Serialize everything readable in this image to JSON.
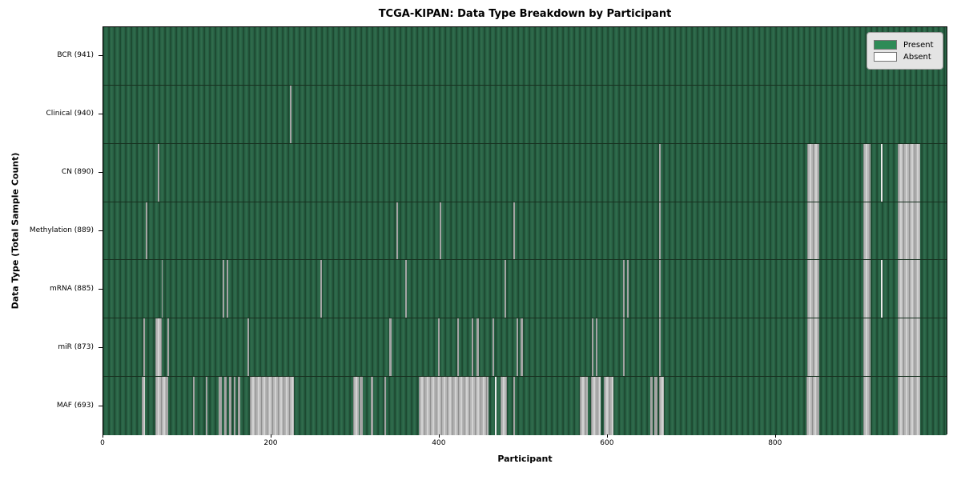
{
  "chart_data": {
    "type": "heatmap",
    "title": "TCGA-KIPAN: Data Type Breakdown by Participant",
    "xlabel": "Participant",
    "ylabel": "Data Type (Total Sample Count)",
    "legend": [
      {
        "label": "Present",
        "color": "#2e8b57"
      },
      {
        "label": "Absent",
        "color": "#ffffff"
      }
    ],
    "legend_position": "upper right",
    "grid": "row-separators",
    "x_ticks": [
      0,
      200,
      400,
      600,
      800
    ],
    "x_max": 1005,
    "colors": {
      "present_fill": "#2a6647",
      "present_cell_edge": "#1c4a31",
      "absent_fill": "#b5b5b5",
      "row_separator": "#17301f",
      "axis": "#000000"
    },
    "rows": [
      {
        "label": "BCR (941)",
        "data_type": "BCR",
        "total_sample_count": 941,
        "absent_stripes_pct": []
      },
      {
        "label": "Clinical (940)",
        "data_type": "Clinical",
        "total_sample_count": 940,
        "absent_stripes_pct": [
          [
            22.09,
            0.19,
            0
          ]
        ]
      },
      {
        "label": "CN (890)",
        "data_type": "CN",
        "total_sample_count": 890,
        "absent_stripes_pct": [
          [
            6.45,
            0.21,
            0
          ],
          [
            65.88,
            0.19,
            0
          ],
          [
            83.51,
            1.4,
            1
          ],
          [
            90.14,
            0.85,
            1
          ],
          [
            92.23,
            0.14,
            2
          ],
          [
            94.22,
            2.65,
            1
          ]
        ]
      },
      {
        "label": "Methylation (889)",
        "data_type": "Methylation",
        "total_sample_count": 889,
        "absent_stripes_pct": [
          [
            5.02,
            0.16,
            0
          ],
          [
            34.79,
            0.19,
            0
          ],
          [
            39.91,
            0.19,
            0
          ],
          [
            48.63,
            0.19,
            0
          ],
          [
            65.88,
            0.19,
            0
          ],
          [
            83.51,
            1.4,
            1
          ],
          [
            90.14,
            0.85,
            1
          ],
          [
            94.22,
            2.65,
            1
          ]
        ]
      },
      {
        "label": "mRNA (885)",
        "data_type": "mRNA",
        "total_sample_count": 885,
        "absent_stripes_pct": [
          [
            6.92,
            0.15,
            0
          ],
          [
            14.12,
            0.24,
            0
          ],
          [
            14.6,
            0.21,
            0
          ],
          [
            25.78,
            0.17,
            0
          ],
          [
            35.83,
            0.15,
            0
          ],
          [
            47.58,
            0.15,
            0
          ],
          [
            61.61,
            0.24,
            0
          ],
          [
            62.09,
            0.21,
            0
          ],
          [
            65.88,
            0.19,
            0
          ],
          [
            83.51,
            1.4,
            1
          ],
          [
            90.14,
            0.85,
            1
          ],
          [
            92.23,
            0.14,
            2
          ],
          [
            94.22,
            2.65,
            1
          ]
        ]
      },
      {
        "label": "miR (873)",
        "data_type": "miR",
        "total_sample_count": 873,
        "absent_stripes_pct": [
          [
            4.74,
            0.19,
            0
          ],
          [
            6.16,
            0.76,
            1
          ],
          [
            7.58,
            0.19,
            0
          ],
          [
            17.06,
            0.19,
            0
          ],
          [
            33.93,
            0.24,
            0
          ],
          [
            39.72,
            0.19,
            0
          ],
          [
            41.99,
            0.19,
            0
          ],
          [
            43.7,
            0.19,
            0
          ],
          [
            44.27,
            0.28,
            0
          ],
          [
            46.16,
            0.19,
            0
          ],
          [
            49.0,
            0.24,
            0
          ],
          [
            49.48,
            0.24,
            0
          ],
          [
            57.91,
            0.19,
            0
          ],
          [
            58.39,
            0.19,
            0
          ],
          [
            61.61,
            0.19,
            0
          ],
          [
            65.88,
            0.19,
            0
          ],
          [
            83.51,
            1.4,
            1
          ],
          [
            90.14,
            0.85,
            1
          ],
          [
            94.22,
            2.65,
            1
          ]
        ]
      },
      {
        "label": "MAF (693)",
        "data_type": "MAF",
        "total_sample_count": 693,
        "absent_stripes_pct": [
          [
            4.55,
            0.38,
            1
          ],
          [
            6.16,
            1.52,
            1
          ],
          [
            10.62,
            0.19,
            0
          ],
          [
            12.13,
            0.19,
            0
          ],
          [
            13.65,
            0.38,
            0
          ],
          [
            14.31,
            0.28,
            0
          ],
          [
            14.88,
            0.28,
            0
          ],
          [
            15.45,
            0.19,
            0
          ],
          [
            15.92,
            0.28,
            0
          ],
          [
            17.35,
            5.21,
            1
          ],
          [
            29.67,
            0.66,
            1
          ],
          [
            30.43,
            0.38,
            0
          ],
          [
            31.75,
            0.28,
            0
          ],
          [
            33.36,
            0.19,
            0
          ],
          [
            37.44,
            8.25,
            1
          ],
          [
            46.45,
            0.19,
            2
          ],
          [
            47.11,
            0.76,
            1
          ],
          [
            48.63,
            0.19,
            0
          ],
          [
            56.49,
            0.95,
            1
          ],
          [
            57.82,
            1.14,
            1
          ],
          [
            59.34,
            1.14,
            1
          ],
          [
            64.83,
            0.28,
            0
          ],
          [
            65.31,
            0.38,
            0
          ],
          [
            65.88,
            0.57,
            1
          ],
          [
            83.41,
            1.52,
            1
          ],
          [
            90.14,
            0.85,
            1
          ],
          [
            94.22,
            2.65,
            1
          ]
        ]
      }
    ],
    "stripe_kind_legend": {
      "0": "thin-gray-line",
      "1": "wide-gray-band",
      "2": "thin-white-line"
    }
  }
}
